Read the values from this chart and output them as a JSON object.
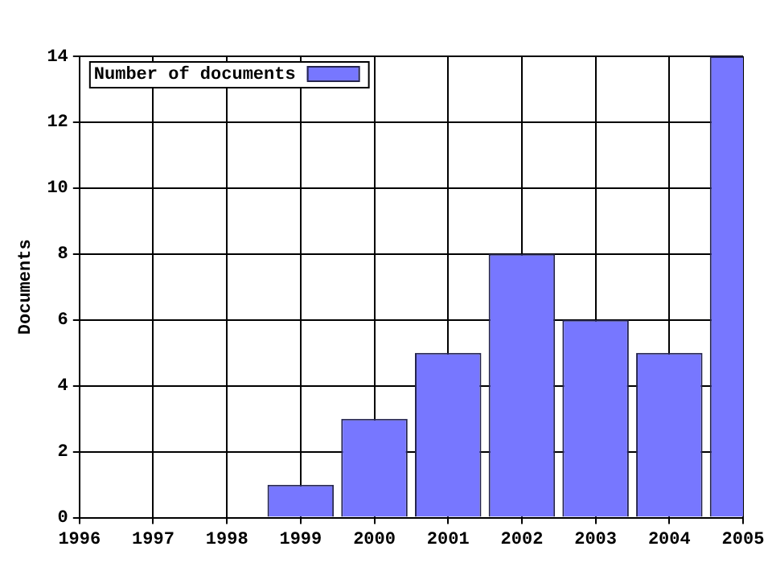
{
  "chart_data": {
    "type": "bar",
    "ylabel": "Documents",
    "x": [
      1996,
      1997,
      1998,
      1999,
      2000,
      2001,
      2002,
      2003,
      2004,
      2005
    ],
    "series": [
      {
        "name": "Number of documents",
        "color": "#7777ff",
        "values": [
          0,
          0,
          0,
          1,
          3,
          5,
          8,
          6,
          5,
          14
        ]
      }
    ],
    "xlim": [
      1996,
      2005
    ],
    "xticks": [
      1996,
      1997,
      1998,
      1999,
      2000,
      2001,
      2002,
      2003,
      2004,
      2005
    ],
    "ylim": [
      0,
      14
    ],
    "yticks": [
      0,
      2,
      4,
      6,
      8,
      10,
      12,
      14
    ],
    "grid": true,
    "legend": "top left"
  }
}
